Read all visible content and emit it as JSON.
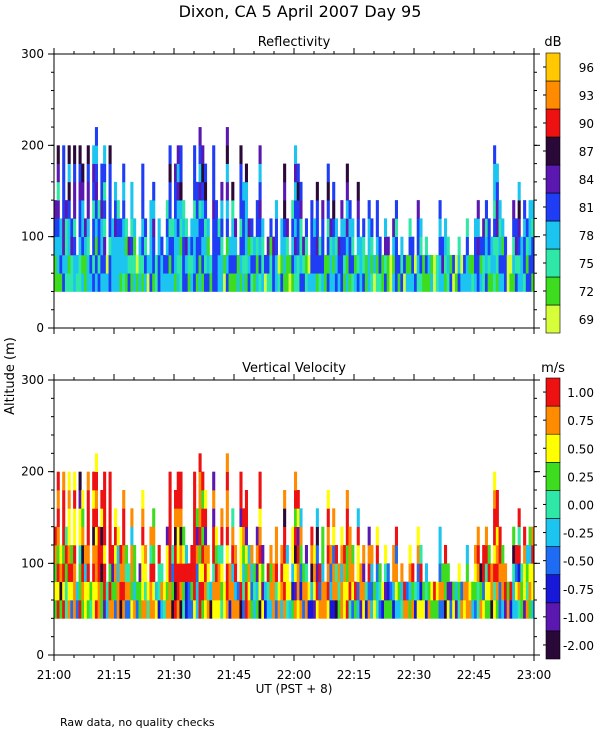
{
  "figure_title": "Dixon, CA   5 April 2007   Day   95",
  "shared_ylabel": "Altitude (m)",
  "footnote": "Raw data, no quality checks",
  "chart_data": [
    {
      "type": "heatmap",
      "title": "Reflectivity",
      "colorbar_units": "dB",
      "colorbar_levels": [
        "69",
        "72",
        "75",
        "78",
        "81",
        "84",
        "87",
        "90",
        "93",
        "96"
      ],
      "colorbar_colors": [
        "#d6ff3a",
        "#3ddc1e",
        "#2fe8a8",
        "#1cc4f0",
        "#1f3df4",
        "#5a18b0",
        "#2a0838",
        "#ee1111",
        "#ff8c00",
        "#ffc800"
      ],
      "ylim": [
        0,
        300
      ],
      "yticks": [
        "0",
        "100",
        "200",
        "300"
      ],
      "xlim_minutes": [
        0,
        120
      ],
      "echo_base_m": 40,
      "echo_tops_m": [
        140,
        200,
        120,
        200,
        140,
        200,
        120,
        200,
        80,
        200,
        180,
        120,
        200,
        80,
        200,
        220,
        140,
        180,
        200,
        80,
        200,
        120,
        160,
        140,
        120,
        180,
        120,
        100,
        160,
        120,
        80,
        100,
        180,
        120,
        80,
        140,
        160,
        80,
        120,
        100,
        80,
        140,
        200,
        120,
        180,
        200,
        200,
        140,
        120,
        100,
        120,
        200,
        160,
        220,
        200,
        180,
        120,
        80,
        200,
        140,
        120,
        160,
        80,
        220,
        100,
        160,
        120,
        80,
        200,
        160,
        180,
        120,
        120,
        100,
        140,
        200,
        120,
        80,
        100,
        120,
        100,
        140,
        80,
        120,
        180,
        120,
        80,
        140,
        200,
        180,
        160,
        100,
        120,
        80,
        140,
        120,
        160,
        100,
        140,
        80,
        180,
        120,
        160,
        120,
        100,
        140,
        120,
        180,
        140,
        120,
        80,
        160,
        100,
        120,
        80,
        140,
        120,
        80,
        140,
        100,
        80,
        120,
        100,
        80,
        120,
        140,
        80,
        100,
        80,
        80,
        120,
        100,
        80,
        140,
        120,
        80,
        100,
        80,
        80,
        80,
        80,
        140,
        100,
        120,
        100,
        80,
        80,
        80,
        100,
        80,
        80,
        120,
        80,
        80,
        120,
        140,
        100,
        120,
        140,
        120,
        100,
        200,
        180,
        140,
        120,
        100,
        80,
        80,
        140,
        120,
        160,
        100,
        140,
        120,
        140,
        140
      ]
    },
    {
      "type": "heatmap",
      "title": "Vertical Velocity",
      "colorbar_units": "m/s",
      "colorbar_levels": [
        "-2.00",
        "-1.00",
        "-0.75",
        "-0.50",
        "-0.25",
        "0.00",
        "0.25",
        "0.50",
        "0.75",
        "1.00"
      ],
      "colorbar_colors": [
        "#2a0838",
        "#5a18b0",
        "#1818d8",
        "#1f6cf4",
        "#1cc4f0",
        "#2fe8a8",
        "#3ddc1e",
        "#ffff00",
        "#ff8c00",
        "#ee1111"
      ],
      "ylim": [
        0,
        300
      ],
      "yticks": [
        "0",
        "100",
        "200",
        "300"
      ],
      "xlim_minutes": [
        0,
        120
      ],
      "echo_base_m": 40,
      "echo_tops_m": "same as Reflectivity"
    }
  ],
  "x_axis": {
    "ticks": [
      "21:00",
      "21:15",
      "21:30",
      "21:45",
      "22:00",
      "22:15",
      "22:30",
      "22:45",
      "23:00"
    ],
    "label": "UT  (PST + 8)"
  }
}
